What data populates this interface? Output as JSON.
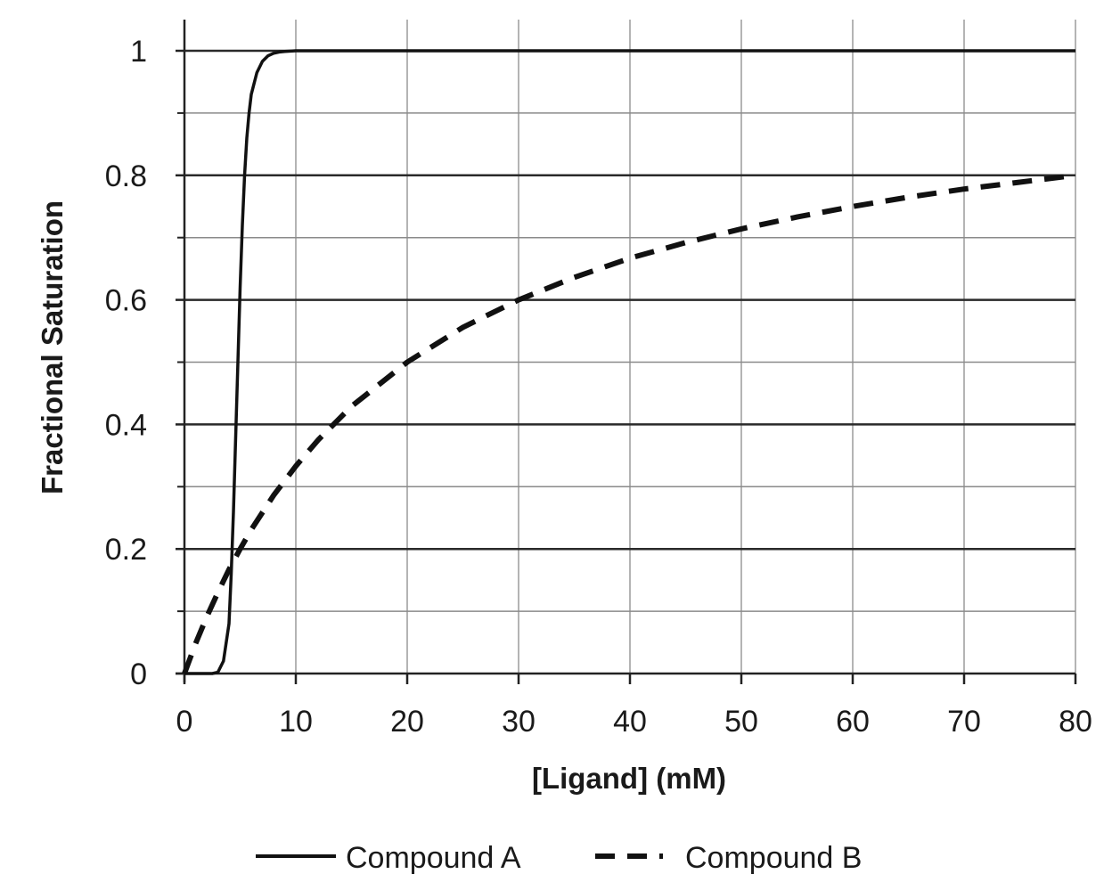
{
  "chart_data": {
    "type": "line",
    "title": "",
    "xlabel": "[Ligand] (mM)",
    "ylabel": "Fractional Saturation",
    "xlim": [
      0,
      80
    ],
    "ylim": [
      0,
      1
    ],
    "x_ticks": [
      0,
      10,
      20,
      30,
      40,
      50,
      60,
      70,
      80
    ],
    "y_ticks": [
      0,
      0.2,
      0.4,
      0.6,
      0.8,
      1
    ],
    "x_tick_labels": [
      "0",
      "10",
      "20",
      "30",
      "40",
      "50",
      "60",
      "70",
      "80"
    ],
    "y_tick_labels": [
      "0",
      "0.2",
      "0.4",
      "0.6",
      "0.8",
      "1"
    ],
    "y_minor_ticks": [
      0.1,
      0.3,
      0.5,
      0.7,
      0.9
    ],
    "grid": true,
    "legend_position": "bottom",
    "series": [
      {
        "name": "Compound A",
        "line_style": "solid",
        "color": "#111111",
        "x": [
          0,
          2.5,
          3,
          3.5,
          4,
          4.2,
          4.4,
          4.6,
          4.8,
          5,
          5.2,
          5.4,
          5.6,
          5.8,
          6,
          6.5,
          7,
          7.5,
          8,
          8.5,
          9,
          10,
          15,
          20,
          30,
          40,
          50,
          60,
          70,
          80
        ],
        "y": [
          0,
          0,
          0.002,
          0.02,
          0.08,
          0.16,
          0.26,
          0.38,
          0.5,
          0.62,
          0.72,
          0.8,
          0.86,
          0.9,
          0.93,
          0.965,
          0.983,
          0.992,
          0.996,
          0.998,
          0.999,
          1,
          1,
          1,
          1,
          1,
          1,
          1,
          1,
          1
        ]
      },
      {
        "name": "Compound B",
        "line_style": "dashed",
        "color": "#111111",
        "x": [
          0,
          1,
          2,
          3,
          4,
          5,
          6,
          8,
          10,
          12,
          15,
          20,
          25,
          30,
          35,
          40,
          45,
          50,
          55,
          60,
          65,
          70,
          75,
          80
        ],
        "y": [
          0,
          0.048,
          0.091,
          0.13,
          0.167,
          0.2,
          0.231,
          0.286,
          0.333,
          0.375,
          0.429,
          0.5,
          0.556,
          0.6,
          0.636,
          0.667,
          0.692,
          0.714,
          0.733,
          0.75,
          0.765,
          0.778,
          0.789,
          0.8
        ]
      }
    ]
  }
}
